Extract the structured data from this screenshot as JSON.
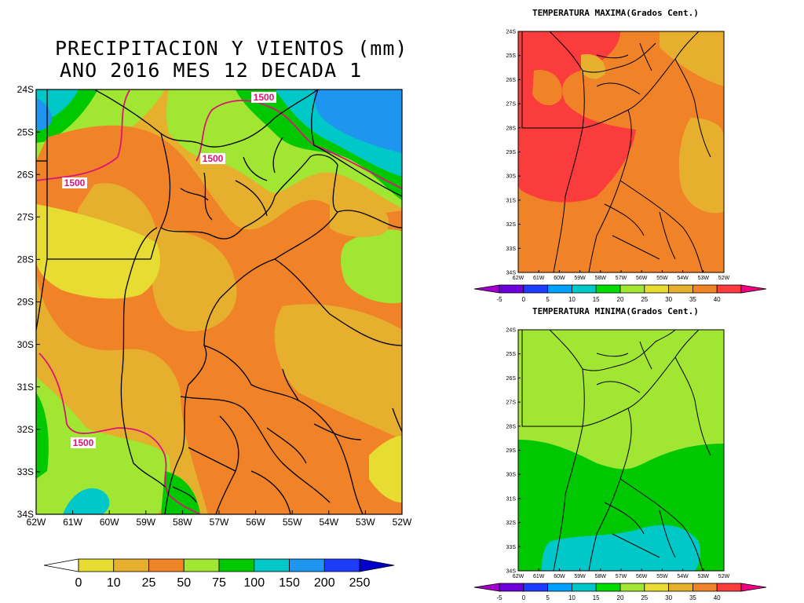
{
  "chart_data": [
    {
      "type": "heatmap",
      "title_lines": [
        "PRECIPITACION Y VIENTOS (mm)",
        "ANO 2016 MES 12 DECADA 1"
      ],
      "x_ticks": [
        "62W",
        "61W",
        "60W",
        "59W",
        "58W",
        "57W",
        "56W",
        "55W",
        "54W",
        "53W",
        "52W"
      ],
      "y_ticks": [
        "24S",
        "25S",
        "26S",
        "27S",
        "28S",
        "29S",
        "30S",
        "31S",
        "32S",
        "33S",
        "34S"
      ],
      "xlim": [
        -62,
        -52
      ],
      "ylim": [
        -34,
        -24
      ],
      "contour_labels": [
        "1500",
        "1500",
        "1500",
        "1500"
      ],
      "colorbar": {
        "levels": [
          "0",
          "10",
          "25",
          "50",
          "75",
          "100",
          "150",
          "200",
          "250"
        ],
        "colors": [
          "#ffffff",
          "#e6dc32",
          "#e6af2d",
          "#f08228",
          "#a0e632",
          "#00c800",
          "#00c8c8",
          "#1e96f0",
          "#1e3cff",
          "#0000c8"
        ]
      }
    },
    {
      "type": "heatmap",
      "title": "TEMPERATURA MAXIMA(Grados Cent.)",
      "x_ticks": [
        "62W",
        "61W",
        "60W",
        "59W",
        "58W",
        "57W",
        "56W",
        "55W",
        "54W",
        "53W",
        "52W"
      ],
      "y_ticks": [
        "24S",
        "25S",
        "26S",
        "27S",
        "28S",
        "29S",
        "30S",
        "31S",
        "32S",
        "33S",
        "34S"
      ],
      "xlim": [
        -62,
        -52
      ],
      "ylim": [
        -34,
        -24
      ],
      "colorbar": {
        "levels": [
          "-5",
          "0",
          "5",
          "10",
          "15",
          "20",
          "25",
          "30",
          "35",
          "40"
        ],
        "colors": [
          "#a000c8",
          "#6e00dc",
          "#1e3cff",
          "#00a0ff",
          "#00c8c8",
          "#00dc00",
          "#a0e632",
          "#e6dc32",
          "#e6af2d",
          "#f08228",
          "#fa3c3c",
          "#f00082"
        ]
      }
    },
    {
      "type": "heatmap",
      "title": "TEMPERATURA MINIMA(Grados Cent.)",
      "x_ticks": [
        "62W",
        "61W",
        "60W",
        "59W",
        "58W",
        "57W",
        "56W",
        "55W",
        "54W",
        "53W",
        "52W"
      ],
      "y_ticks": [
        "24S",
        "25S",
        "26S",
        "27S",
        "28S",
        "29S",
        "30S",
        "31S",
        "32S",
        "33S",
        "34S"
      ],
      "xlim": [
        -62,
        -52
      ],
      "ylim": [
        -34,
        -24
      ],
      "colorbar": {
        "levels": [
          "-5",
          "0",
          "5",
          "10",
          "15",
          "20",
          "25",
          "30",
          "35",
          "40"
        ],
        "colors": [
          "#a000c8",
          "#6e00dc",
          "#1e3cff",
          "#00a0ff",
          "#00c8c8",
          "#00dc00",
          "#a0e632",
          "#e6dc32",
          "#e6af2d",
          "#f08228",
          "#fa3c3c",
          "#f00082"
        ]
      }
    }
  ]
}
